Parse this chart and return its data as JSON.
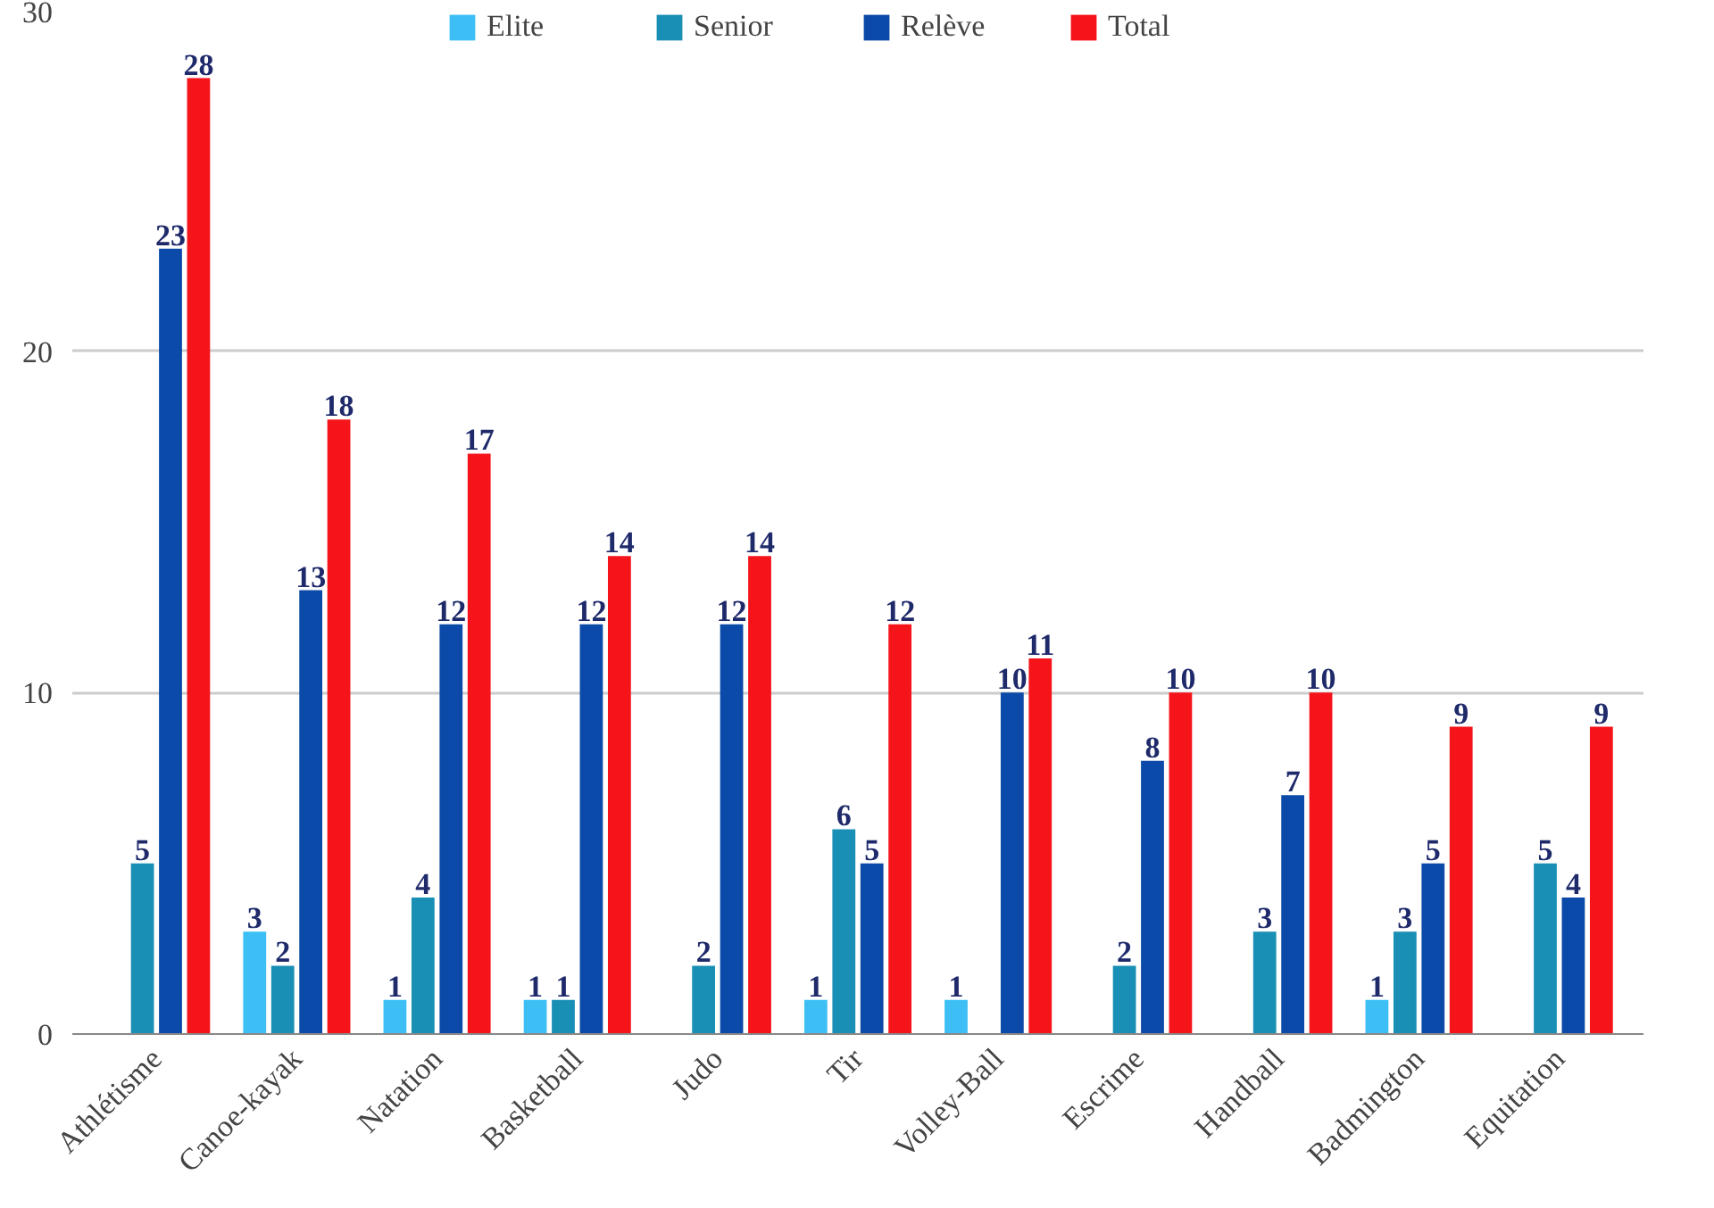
{
  "chart_data": {
    "type": "bar",
    "categories": [
      "Athlétisme",
      "Canoe-kayak",
      "Natation",
      "Basketball",
      "Judo",
      "Tir",
      "Volley-Ball",
      "Escrime",
      "Handball",
      "Badmington",
      "Equitation"
    ],
    "series": [
      {
        "name": "Elite",
        "color": "#3dbff5",
        "values": [
          null,
          3,
          1,
          1,
          null,
          1,
          1,
          null,
          null,
          1,
          null
        ]
      },
      {
        "name": "Senior",
        "color": "#1a8fb5",
        "values": [
          5,
          2,
          4,
          1,
          2,
          6,
          null,
          2,
          3,
          3,
          5
        ]
      },
      {
        "name": "Relève",
        "color": "#0b4aa8",
        "values": [
          23,
          13,
          12,
          12,
          12,
          5,
          10,
          8,
          7,
          5,
          4
        ]
      },
      {
        "name": "Total",
        "color": "#f5141a",
        "values": [
          28,
          18,
          17,
          14,
          14,
          12,
          11,
          10,
          10,
          9,
          9
        ]
      }
    ],
    "ylim": [
      0,
      30
    ],
    "yticks": [
      0,
      10,
      20,
      30
    ],
    "grid": "y",
    "legend": "top",
    "data_labels": true
  }
}
